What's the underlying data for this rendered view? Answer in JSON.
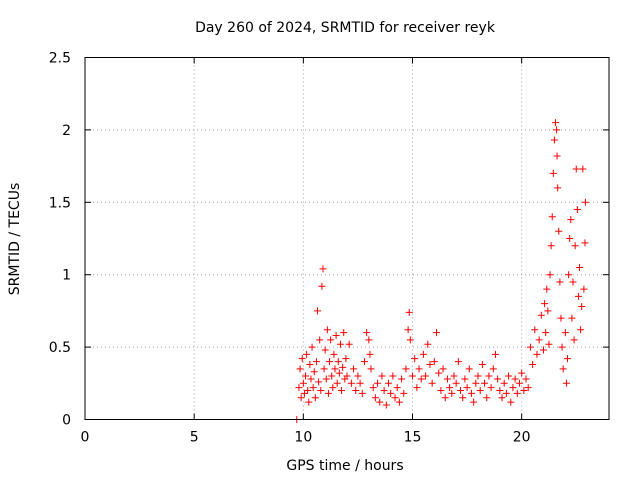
{
  "chart_data": {
    "type": "scatter",
    "title": "Day 260 of 2024, SRMTID for receiver reyk",
    "xlabel": "GPS time / hours",
    "ylabel": "SRMTID / TECUs",
    "xlim": [
      0,
      24
    ],
    "ylim": [
      0,
      2.5
    ],
    "xticks": [
      0,
      5,
      10,
      15,
      20
    ],
    "yticks": [
      0,
      0.5,
      1,
      1.5,
      2,
      2.5
    ],
    "xtick_labels": [
      "0",
      "5",
      "10",
      "15",
      "20"
    ],
    "ytick_labels": [
      "0",
      "0.5",
      "1",
      "1.5",
      "2",
      "2.5"
    ],
    "grid": true,
    "marker": "+",
    "color": "#ff0000",
    "series": [
      {
        "name": "SRMTID",
        "points": [
          [
            9.7,
            0.0
          ],
          [
            9.8,
            0.22
          ],
          [
            9.85,
            0.35
          ],
          [
            9.9,
            0.15
          ],
          [
            9.95,
            0.42
          ],
          [
            10.0,
            0.25
          ],
          [
            10.05,
            0.18
          ],
          [
            10.1,
            0.3
          ],
          [
            10.15,
            0.45
          ],
          [
            10.2,
            0.2
          ],
          [
            10.25,
            0.12
          ],
          [
            10.3,
            0.38
          ],
          [
            10.35,
            0.28
          ],
          [
            10.4,
            0.5
          ],
          [
            10.45,
            0.22
          ],
          [
            10.5,
            0.33
          ],
          [
            10.55,
            0.15
          ],
          [
            10.6,
            0.4
          ],
          [
            10.65,
            0.75
          ],
          [
            10.7,
            0.26
          ],
          [
            10.75,
            0.55
          ],
          [
            10.8,
            0.2
          ],
          [
            10.85,
            0.92
          ],
          [
            10.9,
            1.04
          ],
          [
            10.95,
            0.35
          ],
          [
            11.0,
            0.48
          ],
          [
            11.05,
            0.28
          ],
          [
            11.1,
            0.62
          ],
          [
            11.15,
            0.18
          ],
          [
            11.2,
            0.4
          ],
          [
            11.25,
            0.55
          ],
          [
            11.3,
            0.3
          ],
          [
            11.35,
            0.22
          ],
          [
            11.4,
            0.45
          ],
          [
            11.45,
            0.35
          ],
          [
            11.5,
            0.58
          ],
          [
            11.55,
            0.25
          ],
          [
            11.6,
            0.4
          ],
          [
            11.65,
            0.32
          ],
          [
            11.7,
            0.52
          ],
          [
            11.75,
            0.2
          ],
          [
            11.8,
            0.36
          ],
          [
            11.85,
            0.6
          ],
          [
            11.9,
            0.28
          ],
          [
            11.95,
            0.42
          ],
          [
            12.0,
            0.3
          ],
          [
            12.1,
            0.52
          ],
          [
            12.2,
            0.25
          ],
          [
            12.3,
            0.35
          ],
          [
            12.4,
            0.2
          ],
          [
            12.5,
            0.3
          ],
          [
            12.6,
            0.25
          ],
          [
            12.7,
            0.18
          ],
          [
            12.8,
            0.4
          ],
          [
            12.9,
            0.6
          ],
          [
            13.0,
            0.55
          ],
          [
            13.05,
            0.45
          ],
          [
            13.1,
            0.35
          ],
          [
            13.2,
            0.22
          ],
          [
            13.3,
            0.15
          ],
          [
            13.4,
            0.25
          ],
          [
            13.5,
            0.12
          ],
          [
            13.6,
            0.3
          ],
          [
            13.7,
            0.2
          ],
          [
            13.8,
            0.1
          ],
          [
            13.9,
            0.25
          ],
          [
            14.0,
            0.18
          ],
          [
            14.1,
            0.3
          ],
          [
            14.2,
            0.15
          ],
          [
            14.3,
            0.22
          ],
          [
            14.4,
            0.12
          ],
          [
            14.5,
            0.28
          ],
          [
            14.6,
            0.18
          ],
          [
            14.7,
            0.35
          ],
          [
            14.8,
            0.62
          ],
          [
            14.85,
            0.74
          ],
          [
            14.9,
            0.55
          ],
          [
            15.0,
            0.3
          ],
          [
            15.1,
            0.42
          ],
          [
            15.2,
            0.22
          ],
          [
            15.3,
            0.35
          ],
          [
            15.4,
            0.28
          ],
          [
            15.5,
            0.45
          ],
          [
            15.6,
            0.3
          ],
          [
            15.7,
            0.52
          ],
          [
            15.8,
            0.38
          ],
          [
            15.9,
            0.25
          ],
          [
            16.0,
            0.4
          ],
          [
            16.1,
            0.6
          ],
          [
            16.2,
            0.32
          ],
          [
            16.3,
            0.2
          ],
          [
            16.4,
            0.35
          ],
          [
            16.5,
            0.15
          ],
          [
            16.6,
            0.28
          ],
          [
            16.7,
            0.22
          ],
          [
            16.8,
            0.18
          ],
          [
            16.9,
            0.3
          ],
          [
            17.0,
            0.25
          ],
          [
            17.1,
            0.4
          ],
          [
            17.2,
            0.2
          ],
          [
            17.3,
            0.15
          ],
          [
            17.4,
            0.28
          ],
          [
            17.5,
            0.22
          ],
          [
            17.6,
            0.35
          ],
          [
            17.7,
            0.18
          ],
          [
            17.8,
            0.12
          ],
          [
            17.9,
            0.25
          ],
          [
            18.0,
            0.3
          ],
          [
            18.1,
            0.2
          ],
          [
            18.2,
            0.38
          ],
          [
            18.3,
            0.25
          ],
          [
            18.4,
            0.15
          ],
          [
            18.5,
            0.3
          ],
          [
            18.6,
            0.22
          ],
          [
            18.7,
            0.35
          ],
          [
            18.8,
            0.45
          ],
          [
            18.9,
            0.28
          ],
          [
            19.0,
            0.2
          ],
          [
            19.1,
            0.15
          ],
          [
            19.2,
            0.25
          ],
          [
            19.3,
            0.18
          ],
          [
            19.4,
            0.3
          ],
          [
            19.5,
            0.12
          ],
          [
            19.6,
            0.22
          ],
          [
            19.7,
            0.28
          ],
          [
            19.8,
            0.18
          ],
          [
            19.9,
            0.25
          ],
          [
            20.0,
            0.32
          ],
          [
            20.1,
            0.2
          ],
          [
            20.2,
            0.28
          ],
          [
            20.3,
            0.22
          ],
          [
            20.4,
            0.5
          ],
          [
            20.5,
            0.38
          ],
          [
            20.6,
            0.62
          ],
          [
            20.7,
            0.45
          ],
          [
            20.8,
            0.55
          ],
          [
            20.9,
            0.72
          ],
          [
            21.0,
            0.48
          ],
          [
            21.05,
            0.8
          ],
          [
            21.1,
            0.6
          ],
          [
            21.15,
            0.9
          ],
          [
            21.2,
            0.75
          ],
          [
            21.25,
            0.52
          ],
          [
            21.3,
            1.0
          ],
          [
            21.35,
            1.2
          ],
          [
            21.4,
            1.4
          ],
          [
            21.45,
            1.7
          ],
          [
            21.5,
            1.93
          ],
          [
            21.55,
            2.05
          ],
          [
            21.6,
            2.0
          ],
          [
            21.62,
            1.82
          ],
          [
            21.65,
            1.6
          ],
          [
            21.7,
            1.3
          ],
          [
            21.75,
            0.95
          ],
          [
            21.8,
            0.7
          ],
          [
            21.85,
            0.5
          ],
          [
            21.9,
            0.35
          ],
          [
            22.0,
            0.6
          ],
          [
            22.05,
            0.25
          ],
          [
            22.1,
            0.42
          ],
          [
            22.15,
            1.0
          ],
          [
            22.2,
            1.25
          ],
          [
            22.25,
            1.38
          ],
          [
            22.3,
            0.7
          ],
          [
            22.35,
            0.95
          ],
          [
            22.4,
            0.55
          ],
          [
            22.45,
            1.2
          ],
          [
            22.5,
            1.73
          ],
          [
            22.55,
            1.45
          ],
          [
            22.6,
            0.85
          ],
          [
            22.65,
            1.05
          ],
          [
            22.7,
            0.62
          ],
          [
            22.75,
            0.78
          ],
          [
            22.8,
            1.73
          ],
          [
            22.85,
            0.9
          ],
          [
            22.9,
            1.22
          ],
          [
            22.92,
            1.5
          ]
        ]
      }
    ]
  }
}
